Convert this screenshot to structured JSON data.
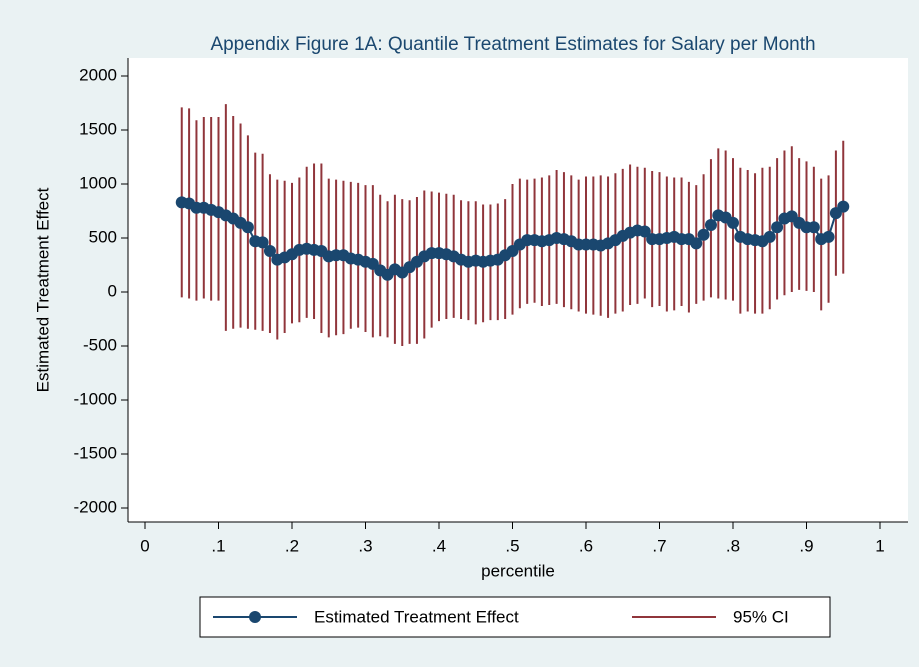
{
  "chart_data": {
    "type": "line",
    "title": "Appendix Figure 1A: Quantile Treatment Estimates for Salary per Month",
    "xlabel": "percentile",
    "ylabel": "Estimated Treatment Effect",
    "x": [
      0.05,
      0.06,
      0.07,
      0.08,
      0.09,
      0.1,
      0.11,
      0.12,
      0.13,
      0.14,
      0.15,
      0.16,
      0.17,
      0.18,
      0.19,
      0.2,
      0.21,
      0.22,
      0.23,
      0.24,
      0.25,
      0.26,
      0.27,
      0.28,
      0.29,
      0.3,
      0.31,
      0.32,
      0.33,
      0.34,
      0.35,
      0.36,
      0.37,
      0.38,
      0.39,
      0.4,
      0.41,
      0.42,
      0.43,
      0.44,
      0.45,
      0.46,
      0.47,
      0.48,
      0.49,
      0.5,
      0.51,
      0.52,
      0.53,
      0.54,
      0.55,
      0.56,
      0.57,
      0.58,
      0.59,
      0.6,
      0.61,
      0.62,
      0.63,
      0.64,
      0.65,
      0.66,
      0.67,
      0.68,
      0.69,
      0.7,
      0.71,
      0.72,
      0.73,
      0.74,
      0.75,
      0.76,
      0.77,
      0.78,
      0.79,
      0.8,
      0.81,
      0.82,
      0.83,
      0.84,
      0.85,
      0.86,
      0.87,
      0.88,
      0.89,
      0.9,
      0.91,
      0.92,
      0.93,
      0.94,
      0.95
    ],
    "series": [
      {
        "name": "Estimated Treatment Effect",
        "color": "#1a476f",
        "values": [
          830,
          820,
          780,
          780,
          760,
          740,
          710,
          680,
          640,
          600,
          470,
          460,
          380,
          300,
          320,
          350,
          390,
          400,
          390,
          380,
          330,
          340,
          340,
          310,
          300,
          280,
          260,
          200,
          160,
          210,
          180,
          230,
          280,
          330,
          360,
          360,
          350,
          330,
          300,
          280,
          290,
          280,
          290,
          300,
          340,
          380,
          440,
          480,
          480,
          470,
          480,
          500,
          490,
          470,
          440,
          440,
          440,
          430,
          450,
          480,
          520,
          550,
          570,
          560,
          490,
          490,
          500,
          510,
          490,
          490,
          450,
          530,
          620,
          710,
          690,
          640,
          510,
          490,
          480,
          470,
          510,
          600,
          680,
          700,
          640,
          600,
          600,
          490,
          510,
          730,
          790
        ]
      },
      {
        "name": "95% CI",
        "color": "#90353b",
        "upper": [
          1710,
          1700,
          1590,
          1620,
          1620,
          1620,
          1740,
          1630,
          1560,
          1450,
          1290,
          1280,
          1090,
          1040,
          1030,
          1010,
          1060,
          1160,
          1190,
          1190,
          1050,
          1040,
          1030,
          1020,
          1010,
          990,
          990,
          900,
          840,
          900,
          860,
          850,
          880,
          940,
          930,
          920,
          910,
          900,
          850,
          840,
          840,
          810,
          810,
          820,
          860,
          1000,
          1050,
          1040,
          1050,
          1060,
          1080,
          1130,
          1110,
          1080,
          1040,
          1070,
          1070,
          1080,
          1070,
          1100,
          1140,
          1180,
          1160,
          1150,
          1120,
          1110,
          1070,
          1060,
          1060,
          1020,
          990,
          1090,
          1230,
          1330,
          1310,
          1240,
          1150,
          1130,
          1100,
          1150,
          1160,
          1240,
          1310,
          1350,
          1240,
          1210,
          1160,
          1050,
          1080,
          1310,
          1400
        ],
        "lower": [
          -50,
          -60,
          -80,
          -60,
          -80,
          -80,
          -360,
          -340,
          -330,
          -340,
          -350,
          -360,
          -380,
          -440,
          -380,
          -290,
          -280,
          -240,
          -250,
          -380,
          -420,
          -400,
          -390,
          -340,
          -330,
          -370,
          -420,
          -410,
          -420,
          -480,
          -500,
          -480,
          -480,
          -430,
          -330,
          -270,
          -250,
          -240,
          -250,
          -260,
          -300,
          -280,
          -260,
          -260,
          -250,
          -210,
          -150,
          -110,
          -100,
          -130,
          -120,
          -110,
          -140,
          -160,
          -180,
          -200,
          -210,
          -220,
          -240,
          -200,
          -180,
          -120,
          -110,
          -60,
          -140,
          -130,
          -180,
          -170,
          -130,
          -190,
          -110,
          -80,
          -50,
          -60,
          -70,
          -80,
          -200,
          -180,
          -200,
          -200,
          -160,
          -70,
          -30,
          0,
          20,
          10,
          0,
          -170,
          -100,
          150,
          170
        ]
      }
    ],
    "xlim": [
      0,
      1
    ],
    "xticks": [
      0,
      {
        "value": 0.1,
        "label": ".1"
      },
      {
        "value": 0.2,
        "label": ".2"
      },
      {
        "value": 0.3,
        "label": ".3"
      },
      {
        "value": 0.4,
        "label": ".4"
      },
      {
        "value": 0.5,
        "label": ".5"
      },
      {
        "value": 0.6,
        "label": ".6"
      },
      {
        "value": 0.7,
        "label": ".7"
      },
      {
        "value": 0.8,
        "label": ".8"
      },
      {
        "value": 0.9,
        "label": ".9"
      },
      1
    ],
    "ylim": [
      -2000,
      2000
    ],
    "yticks": [
      -2000,
      -1500,
      -1000,
      -500,
      0,
      500,
      1000,
      1500,
      2000
    ],
    "grid": false
  }
}
